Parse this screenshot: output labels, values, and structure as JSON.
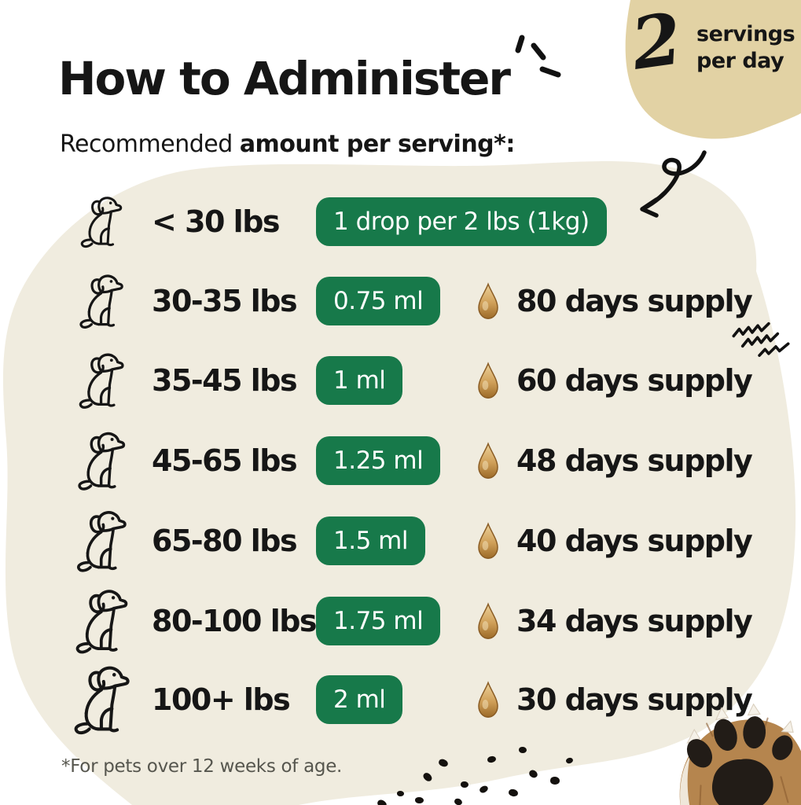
{
  "header": {
    "title": "How to Administer",
    "subtitle": {
      "regular": "Recommended ",
      "bold": "amount per serving*",
      "suffix": ":"
    }
  },
  "servings_badge": {
    "number": "2",
    "line1": "servings",
    "line2": "per day"
  },
  "dosage_table": {
    "rows": [
      {
        "weight": "< 30 lbs",
        "dose": "1 drop per 2 lbs (1kg)",
        "supply": ""
      },
      {
        "weight": "30-35 lbs",
        "dose": "0.75 ml",
        "supply": "80 days supply"
      },
      {
        "weight": "35-45 lbs",
        "dose": "1 ml",
        "supply": "60 days supply"
      },
      {
        "weight": "45-65 lbs",
        "dose": "1.25 ml",
        "supply": "48 days supply"
      },
      {
        "weight": "65-80 lbs",
        "dose": "1.5 ml",
        "supply": "40 days supply"
      },
      {
        "weight": "80-100 lbs",
        "dose": "1.75 ml",
        "supply": "34 days supply"
      },
      {
        "weight": "100+ lbs",
        "dose": "2 ml",
        "supply": "30 days supply"
      }
    ]
  },
  "footnote": "*For pets over 12 weeks of age.",
  "icons": {
    "dog": "dog-line-art-icon",
    "drop": "oil-drop-icon",
    "arrow": "hand-drawn-arrow-icon",
    "sparkles": "emphasis-marks-icon",
    "squiggles": "squiggle-marks-icon",
    "dots": "scatter-dots",
    "paw": "dog-paw-photo"
  },
  "colors": {
    "green": "#17794a",
    "cream": "#f0ecdf",
    "tan": "#e2d2a4",
    "ink": "#161616",
    "gray": "#56564e",
    "drop_amber": "#c2914e",
    "white": "#ffffff"
  }
}
